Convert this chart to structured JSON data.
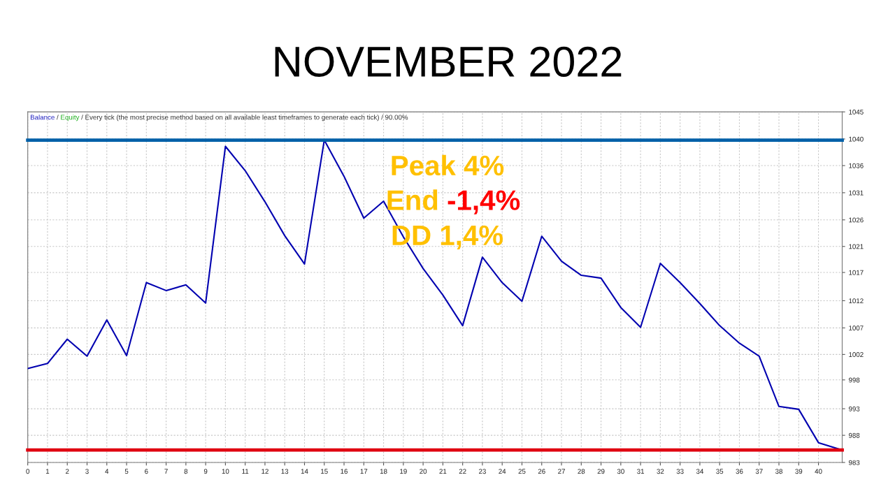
{
  "chart_data": {
    "type": "line",
    "title": "NOVEMBER 2022",
    "x": [
      0,
      1,
      2,
      3,
      4,
      5,
      6,
      7,
      8,
      9,
      10,
      11,
      12,
      13,
      14,
      15,
      16,
      17,
      18,
      19,
      20,
      21,
      22,
      23,
      24,
      25,
      26,
      27,
      28,
      29,
      30,
      31,
      32,
      33,
      34,
      35,
      36,
      37,
      38,
      39,
      40,
      41.2
    ],
    "series": [
      {
        "color": "#0000b0",
        "values": [
          999.6,
          1000.5,
          1004.8,
          1001.8,
          1008.2,
          1001.9,
          1014.8,
          1013.4,
          1014.4,
          1011.2,
          1038.9,
          1034.6,
          1029.1,
          1023.1,
          1018.1,
          1040.0,
          1033.6,
          1026.2,
          1029.2,
          1022.9,
          1017.3,
          1012.6,
          1007.2,
          1019.3,
          1014.8,
          1011.5,
          1023.0,
          1018.6,
          1016.1,
          1015.6,
          1010.4,
          1006.9,
          1018.2,
          1014.8,
          1011.1,
          1007.2,
          1004.1,
          1001.8,
          992.9,
          992.4,
          986.5,
          985.2
        ]
      }
    ],
    "xlim": [
      0,
      41.2
    ],
    "xticks": [
      0,
      1,
      2,
      3,
      4,
      5,
      6,
      7,
      8,
      9,
      10,
      11,
      12,
      13,
      14,
      15,
      16,
      17,
      18,
      19,
      20,
      21,
      22,
      23,
      24,
      25,
      26,
      27,
      28,
      29,
      30,
      31,
      32,
      33,
      34,
      35,
      36,
      37,
      38,
      39,
      40
    ],
    "ylim": [
      983,
      1045
    ],
    "yticks": [
      983,
      {
        "value": 987.8,
        "label": "988"
      },
      {
        "value": 992.5,
        "label": "993"
      },
      {
        "value": 997.6,
        "label": "998"
      },
      {
        "value": 1002.1,
        "label": "1002"
      },
      {
        "value": 1006.8,
        "label": "1007"
      },
      {
        "value": 1011.6,
        "label": "1012"
      },
      {
        "value": 1016.6,
        "label": "1017"
      },
      {
        "value": 1021.2,
        "label": "1021"
      },
      {
        "value": 1025.9,
        "label": "1026"
      },
      {
        "value": 1030.7,
        "label": "1031"
      },
      {
        "value": 1035.5,
        "label": "1036"
      },
      {
        "value": 1040.2,
        "label": "1040"
      },
      1045
    ],
    "ref_lines": [
      {
        "axis": "y",
        "value": 1040,
        "color": "#0060a8"
      },
      {
        "axis": "y",
        "value": 985.2,
        "color": "#e00010"
      }
    ],
    "grid": true,
    "marker": "none",
    "line_style": "solid",
    "annotations": [
      "Balance",
      "/",
      "Equity",
      "/ Every tick (the most precise method based on all available least timeframes to generate each tick) / 90.00%",
      "Peak 4%",
      "End",
      "-1,4%",
      "DD 1,4%"
    ]
  }
}
